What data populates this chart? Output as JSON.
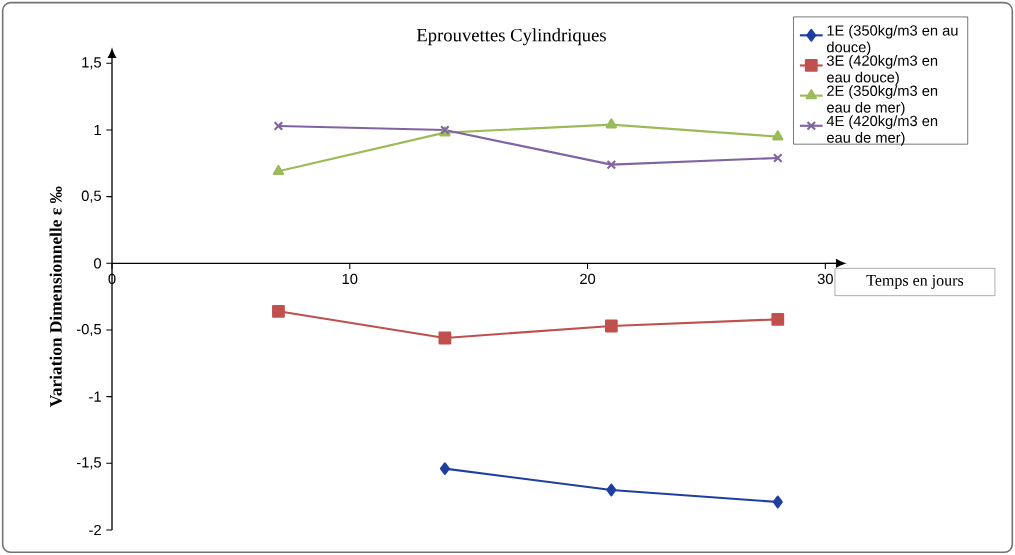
{
  "chart_data": {
    "type": "line",
    "title": "Eprouvettes Cylindriques",
    "xlabel": "Temps en jours",
    "ylabel": "Variation Dimensionnelle   ε ‰",
    "xlim": [
      0,
      30
    ],
    "ylim": [
      -2,
      1.5
    ],
    "xticks": [
      0,
      10,
      20,
      30
    ],
    "yticks": [
      {
        "value": -2,
        "label": "-2"
      },
      {
        "value": -1.5,
        "label": "-1,5"
      },
      {
        "value": -1,
        "label": "-1"
      },
      {
        "value": -0.5,
        "label": "-0,5"
      },
      {
        "value": 0,
        "label": "0"
      },
      {
        "value": 0.5,
        "label": "0,5"
      },
      {
        "value": 1,
        "label": "1"
      },
      {
        "value": 1.5,
        "label": "1,5"
      }
    ],
    "grid": false,
    "legend": "top right",
    "line_style": "solid",
    "series": [
      {
        "name": "1E (350kg/m3 en au douce)",
        "color": "#1f3f9f",
        "marker": "diamond",
        "x": [
          14,
          21,
          28
        ],
        "values": [
          -1.54,
          -1.7,
          -1.79
        ]
      },
      {
        "name": "3E (420kg/m3 en eau douce)",
        "color": "#c0504d",
        "marker": "square",
        "x": [
          7,
          14,
          21,
          28
        ],
        "values": [
          -0.36,
          -0.56,
          -0.47,
          -0.42
        ]
      },
      {
        "name": "2E (350kg/m3 en eau de mer)",
        "color": "#9bbb59",
        "marker": "triangle",
        "x": [
          7,
          14,
          21,
          28
        ],
        "values": [
          0.69,
          0.98,
          1.04,
          0.95
        ]
      },
      {
        "name": "4E (420kg/m3 en eau de mer)",
        "color": "#8064a2",
        "marker": "cross",
        "x": [
          7,
          14,
          21,
          28
        ],
        "values": [
          1.03,
          1.0,
          0.74,
          0.79
        ]
      }
    ]
  }
}
